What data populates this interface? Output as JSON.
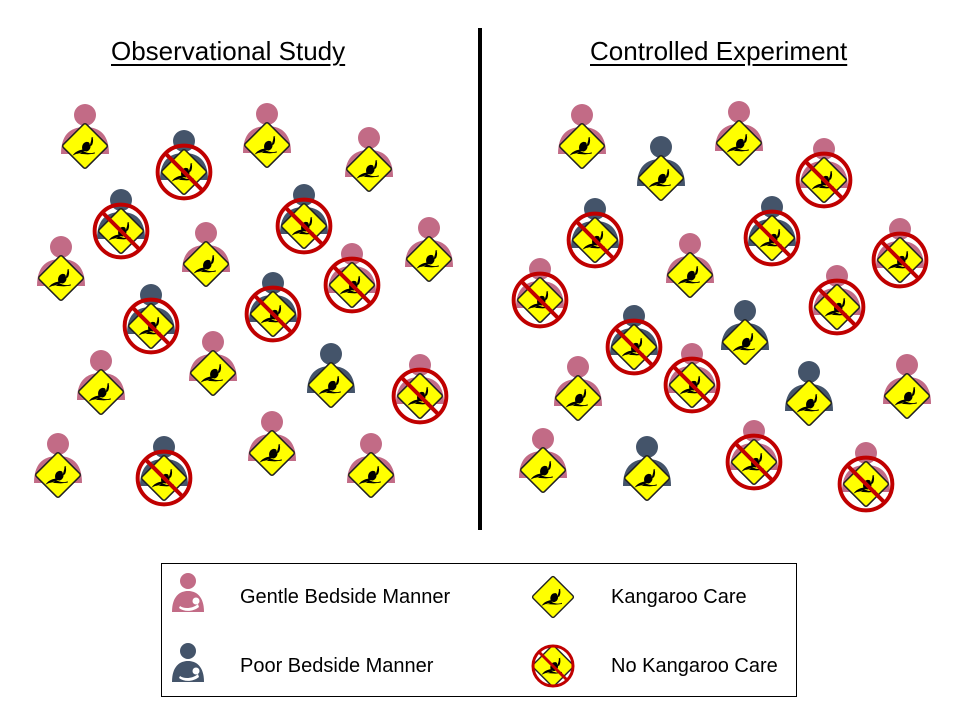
{
  "panels": {
    "left_title": "Observational Study",
    "right_title": "Controlled Experiment"
  },
  "colors": {
    "gentle": "#c26b86",
    "poor": "#44546a",
    "sign_fill": "#ffff00",
    "no_circle": "#c00000"
  },
  "legend": {
    "gentle_label": "Gentle Bedside Manner",
    "poor_label": "Poor Bedside Manner",
    "kangaroo_label": "Kangaroo Care",
    "no_kangaroo_label": "No Kangaroo Care"
  },
  "groups": [
    {
      "name": "observational",
      "members": [
        {
          "manner": "gentle",
          "care": "yes"
        },
        {
          "manner": "poor",
          "care": "no"
        },
        {
          "manner": "gentle",
          "care": "yes"
        },
        {
          "manner": "gentle",
          "care": "yes"
        },
        {
          "manner": "poor",
          "care": "no"
        },
        {
          "manner": "poor",
          "care": "no"
        },
        {
          "manner": "gentle",
          "care": "yes"
        },
        {
          "manner": "gentle",
          "care": "yes"
        },
        {
          "manner": "gentle",
          "care": "no"
        },
        {
          "manner": "gentle",
          "care": "yes"
        },
        {
          "manner": "poor",
          "care": "no"
        },
        {
          "manner": "poor",
          "care": "no"
        },
        {
          "manner": "gentle",
          "care": "yes"
        },
        {
          "manner": "gentle",
          "care": "yes"
        },
        {
          "manner": "poor",
          "care": "yes"
        },
        {
          "manner": "gentle",
          "care": "no"
        },
        {
          "manner": "gentle",
          "care": "yes"
        },
        {
          "manner": "poor",
          "care": "no"
        },
        {
          "manner": "gentle",
          "care": "yes"
        },
        {
          "manner": "gentle",
          "care": "yes"
        }
      ]
    },
    {
      "name": "controlled",
      "members": [
        {
          "manner": "gentle",
          "care": "yes"
        },
        {
          "manner": "poor",
          "care": "yes"
        },
        {
          "manner": "gentle",
          "care": "yes"
        },
        {
          "manner": "gentle",
          "care": "no"
        },
        {
          "manner": "poor",
          "care": "no"
        },
        {
          "manner": "poor",
          "care": "no"
        },
        {
          "manner": "gentle",
          "care": "no"
        },
        {
          "manner": "gentle",
          "care": "yes"
        },
        {
          "manner": "gentle",
          "care": "no"
        },
        {
          "manner": "gentle",
          "care": "no"
        },
        {
          "manner": "poor",
          "care": "no"
        },
        {
          "manner": "poor",
          "care": "yes"
        },
        {
          "manner": "gentle",
          "care": "no"
        },
        {
          "manner": "gentle",
          "care": "yes"
        },
        {
          "manner": "poor",
          "care": "yes"
        },
        {
          "manner": "gentle",
          "care": "yes"
        },
        {
          "manner": "gentle",
          "care": "yes"
        },
        {
          "manner": "poor",
          "care": "yes"
        },
        {
          "manner": "gentle",
          "care": "no"
        },
        {
          "manner": "gentle",
          "care": "no"
        }
      ]
    }
  ]
}
